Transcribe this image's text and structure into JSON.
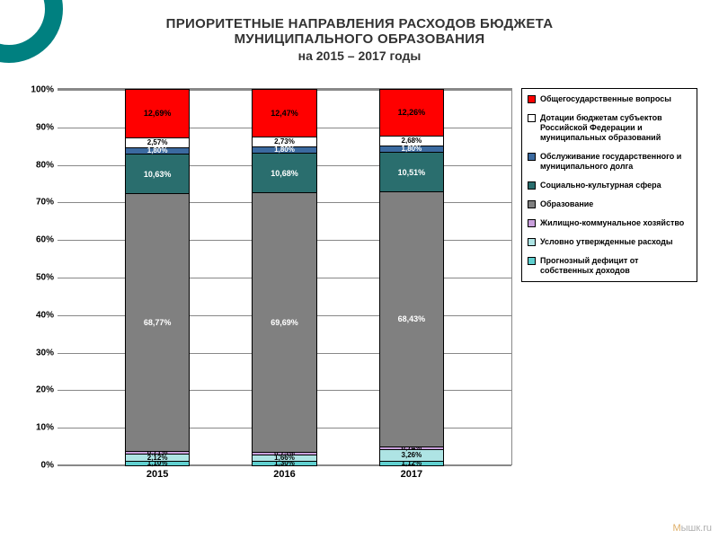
{
  "title": {
    "line1": "ПРИОРИТЕТНЫЕ НАПРАВЛЕНИЯ РАСХОДОВ БЮДЖЕТА",
    "line2": "МУНИЦИПАЛЬНОГО ОБРАЗОВАНИЯ",
    "line3": "на 2015 – 2017 годы"
  },
  "chart": {
    "type": "stacked-bar-100",
    "ylim": [
      0,
      100
    ],
    "ytick_step": 10,
    "bar_width_pct": 14,
    "bar_positions_pct": [
      22,
      50,
      78
    ],
    "background_color": "#ffffff",
    "grid_color": "#888888",
    "categories": [
      "2015",
      "2016",
      "2017"
    ],
    "series": [
      {
        "key": "general_gov",
        "label": "Общегосударственные вопросы",
        "color": "#ff0000"
      },
      {
        "key": "dotations",
        "label": "Дотации бюджетам субъектов Российской Федерации и муниципальных образований",
        "color": "#ffffff"
      },
      {
        "key": "debt_service",
        "label": "Обслуживание государственного и муниципального долга",
        "color": "#3b6aa0"
      },
      {
        "key": "social",
        "label": "Социально-культурная сфера",
        "color": "#2a6e6e"
      },
      {
        "key": "education",
        "label": "Образование",
        "color": "#808080"
      },
      {
        "key": "housing",
        "label": "Жилищно-коммунальное хозяйство",
        "color": "#c9a0dc"
      },
      {
        "key": "conditional",
        "label": "Условно утвержденные расходы",
        "color": "#aee4e4"
      },
      {
        "key": "deficit",
        "label": "Прогнозный дефицит от собственных доходов",
        "color": "#5fcfcf"
      }
    ],
    "data": {
      "2015": {
        "general_gov": 12.69,
        "dotations": 2.57,
        "debt_service": 1.8,
        "social": 10.63,
        "education": 68.77,
        "housing": 0.71,
        "conditional": 2.12,
        "deficit": 1.1
      },
      "2016": {
        "general_gov": 12.47,
        "dotations": 2.73,
        "debt_service": 1.8,
        "social": 10.68,
        "education": 69.69,
        "housing": 0.75,
        "conditional": 1.66,
        "deficit": 1.3
      },
      "2017": {
        "general_gov": 12.26,
        "dotations": 2.68,
        "debt_service": 1.8,
        "social": 10.51,
        "education": 68.43,
        "housing": 0.74,
        "conditional": 3.26,
        "deficit": 1.12
      }
    },
    "label_text": {
      "2015": {
        "general_gov": "12,69%",
        "dotations": "2,57%",
        "debt_service": "1,80%",
        "social": "10,63%",
        "education": "68,77%",
        "housing": "0,71%",
        "conditional": "2,12%",
        "deficit": "1,10%"
      },
      "2016": {
        "general_gov": "12,47%",
        "dotations": "2,73%",
        "debt_service": "1,80%",
        "social": "10,68%",
        "education": "69,69%",
        "housing": "0,75%",
        "conditional": "1,66%",
        "deficit": "1,30%"
      },
      "2017": {
        "general_gov": "12,26%",
        "dotations": "2,68%",
        "debt_service": "1,80%",
        "social": "10,51%",
        "education": "68,43%",
        "housing": "0,74%",
        "conditional": "3,26%",
        "deficit": "1,12%"
      }
    },
    "label_colors": {
      "general_gov": "#000000",
      "dotations": "#000000",
      "debt_service": "#ffffff",
      "social": "#ffffff",
      "education": "#ffffff",
      "housing": "#000000",
      "conditional": "#000000",
      "deficit": "#000000"
    }
  },
  "watermark": {
    "prefix": "М",
    "suffix": "ышк.ru"
  }
}
